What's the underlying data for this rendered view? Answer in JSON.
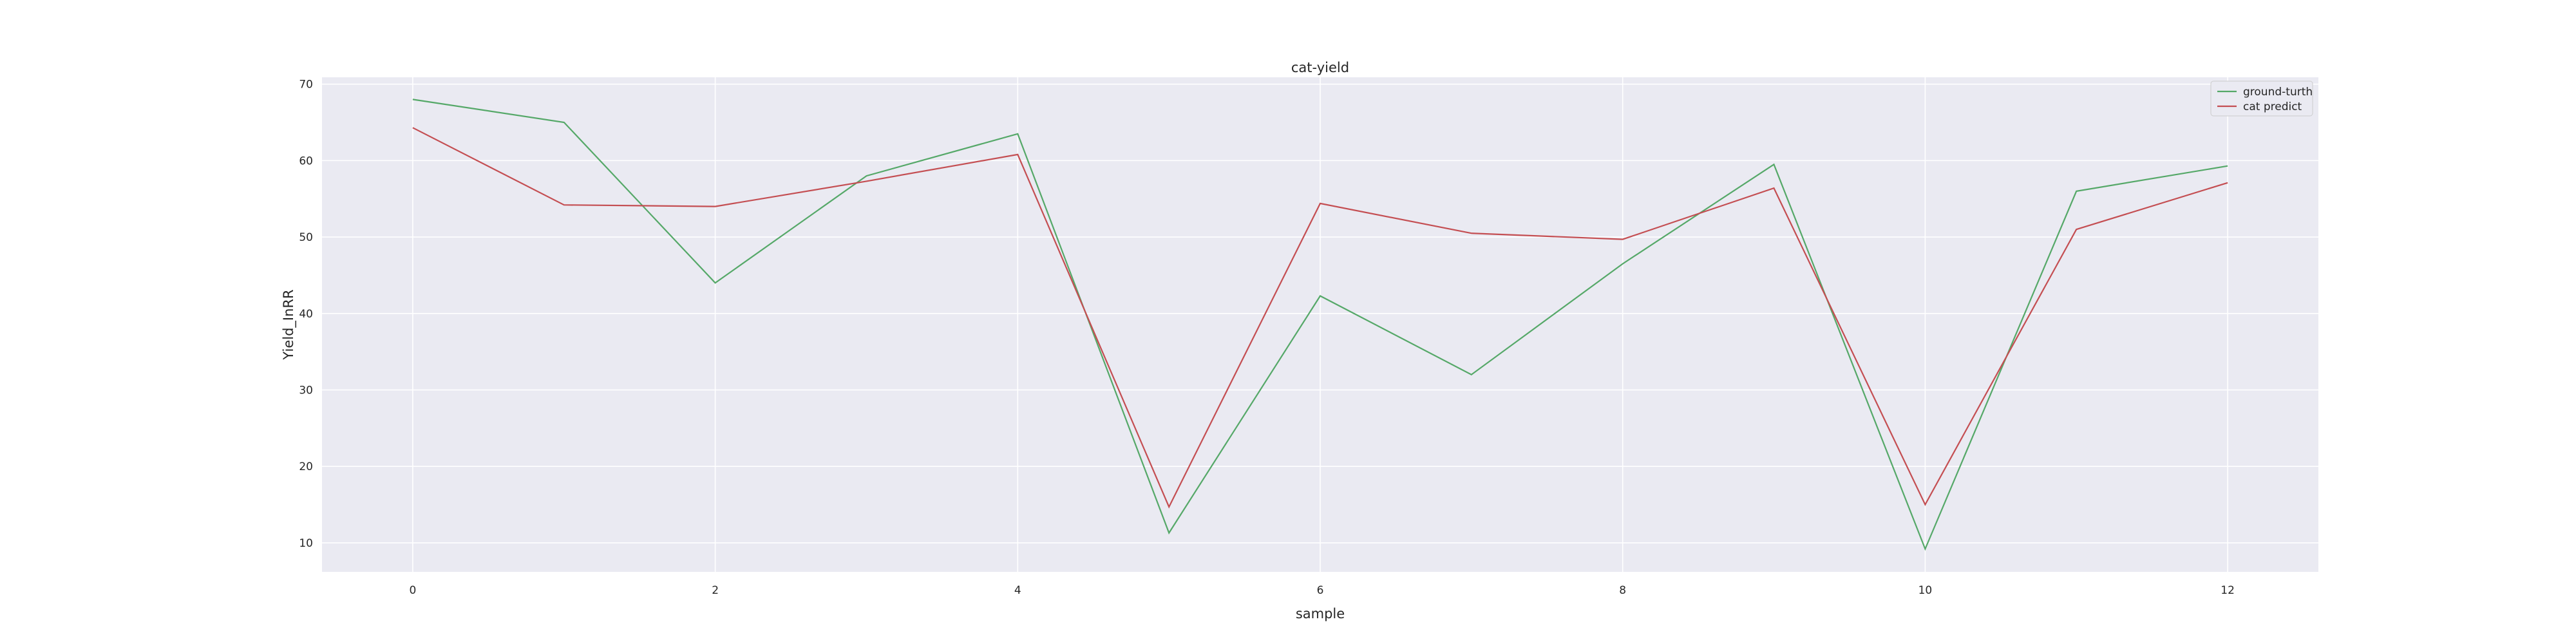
{
  "chart_data": {
    "type": "line",
    "title": "cat-yield",
    "xlabel": "sample",
    "ylabel": "Yield_InRR",
    "x": [
      0,
      1,
      2,
      3,
      4,
      5,
      6,
      7,
      8,
      9,
      10,
      11,
      12
    ],
    "xticks": [
      0,
      2,
      4,
      6,
      8,
      10,
      12
    ],
    "yticks": [
      10,
      20,
      30,
      40,
      50,
      60,
      70
    ],
    "xlim": [
      -0.6,
      12.6
    ],
    "ylim": [
      6.2,
      70.9
    ],
    "grid": true,
    "legend_position": "top-right",
    "series": [
      {
        "name": "ground-turth",
        "color": "#55a868",
        "values": [
          68.0,
          65.0,
          44.0,
          58.0,
          63.5,
          11.3,
          42.3,
          32.0,
          46.5,
          59.5,
          9.2,
          56.0,
          59.3
        ]
      },
      {
        "name": "cat predict",
        "color": "#c44e52",
        "values": [
          64.3,
          54.2,
          54.0,
          57.3,
          60.8,
          14.7,
          54.4,
          50.5,
          49.7,
          56.4,
          15.0,
          51.0,
          57.1
        ]
      }
    ],
    "colors": {
      "plot_background": "#eaeaf2",
      "grid": "#ffffff",
      "text": "#262626"
    }
  }
}
